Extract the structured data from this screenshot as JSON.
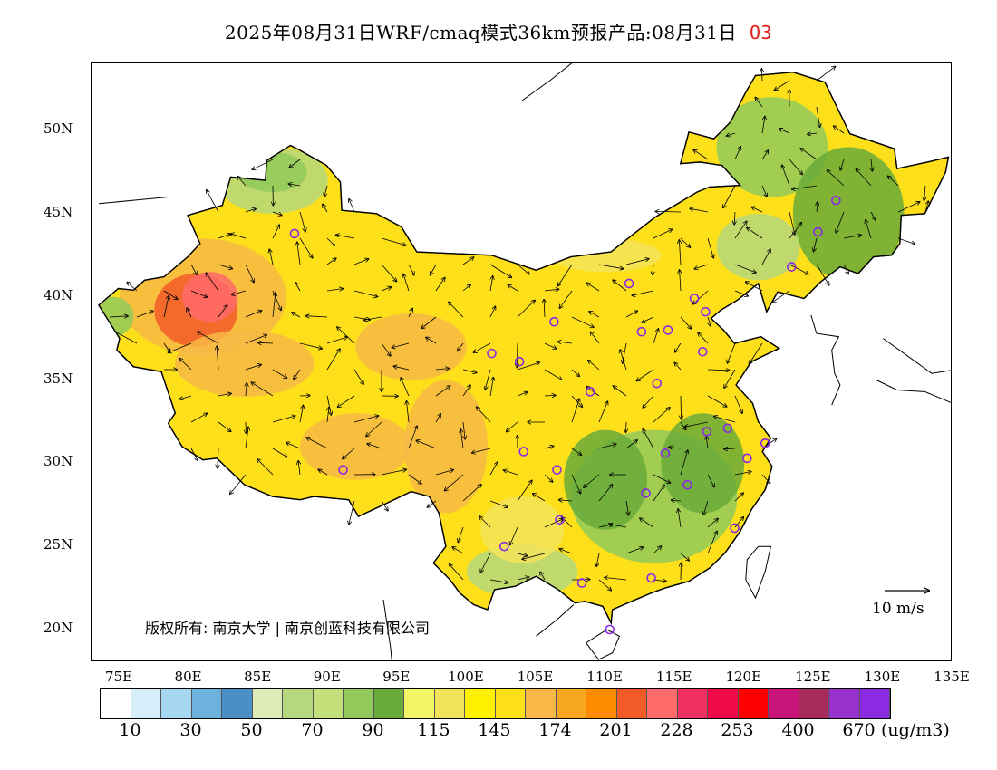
{
  "header": {
    "title": "2025年08月31日WRF/cmaq模式36km预报产品:08月31日",
    "species": "O3",
    "species_color": "#e02020"
  },
  "map": {
    "lon_range": [
      72,
      135
    ],
    "lat_range": [
      18,
      54
    ],
    "lat_ticks": [
      {
        "value": 50,
        "label": "50N"
      },
      {
        "value": 45,
        "label": "45N"
      },
      {
        "value": 40,
        "label": "40N"
      },
      {
        "value": 35,
        "label": "35N"
      },
      {
        "value": 30,
        "label": "30N"
      },
      {
        "value": 25,
        "label": "25N"
      },
      {
        "value": 20,
        "label": "20N"
      }
    ],
    "lon_ticks": [
      {
        "value": 75,
        "label": "75E"
      },
      {
        "value": 80,
        "label": "80E"
      },
      {
        "value": 85,
        "label": "85E"
      },
      {
        "value": 90,
        "label": "90E"
      },
      {
        "value": 95,
        "label": "95E"
      },
      {
        "value": 100,
        "label": "100E"
      },
      {
        "value": 105,
        "label": "105E"
      },
      {
        "value": 110,
        "label": "110E"
      },
      {
        "value": 115,
        "label": "115E"
      },
      {
        "value": 120,
        "label": "120E"
      },
      {
        "value": 125,
        "label": "125E"
      },
      {
        "value": 130,
        "label": "130E"
      },
      {
        "value": 135,
        "label": "135E"
      }
    ],
    "copyright": "版权所有: 南京大学 | 南京创蓝科技有限公司",
    "wind_scale_label": "10 m/s",
    "city_marker_color": "#8a2be2",
    "cities": [
      {
        "lon": 87.6,
        "lat": 43.8
      },
      {
        "lon": 91.1,
        "lat": 29.6
      },
      {
        "lon": 101.8,
        "lat": 36.6
      },
      {
        "lon": 103.8,
        "lat": 36.1
      },
      {
        "lon": 106.3,
        "lat": 38.5
      },
      {
        "lon": 108.9,
        "lat": 34.3
      },
      {
        "lon": 111.7,
        "lat": 40.8
      },
      {
        "lon": 112.6,
        "lat": 37.9
      },
      {
        "lon": 114.5,
        "lat": 38.0
      },
      {
        "lon": 116.4,
        "lat": 39.9
      },
      {
        "lon": 117.2,
        "lat": 39.1
      },
      {
        "lon": 117.0,
        "lat": 36.7
      },
      {
        "lon": 113.7,
        "lat": 34.8
      },
      {
        "lon": 123.4,
        "lat": 41.8
      },
      {
        "lon": 125.3,
        "lat": 43.9
      },
      {
        "lon": 126.6,
        "lat": 45.8
      },
      {
        "lon": 104.1,
        "lat": 30.7
      },
      {
        "lon": 106.5,
        "lat": 29.6
      },
      {
        "lon": 106.7,
        "lat": 26.6
      },
      {
        "lon": 102.7,
        "lat": 25.0
      },
      {
        "lon": 108.3,
        "lat": 22.8
      },
      {
        "lon": 113.3,
        "lat": 23.1
      },
      {
        "lon": 110.3,
        "lat": 20.0
      },
      {
        "lon": 112.9,
        "lat": 28.2
      },
      {
        "lon": 114.3,
        "lat": 30.6
      },
      {
        "lon": 115.9,
        "lat": 28.7
      },
      {
        "lon": 117.3,
        "lat": 31.9
      },
      {
        "lon": 118.8,
        "lat": 32.1
      },
      {
        "lon": 120.2,
        "lat": 30.3
      },
      {
        "lon": 121.5,
        "lat": 31.2
      },
      {
        "lon": 119.3,
        "lat": 26.1
      }
    ]
  },
  "colorbar": {
    "colors": [
      "#ffffff",
      "#d6effa",
      "#a6d8f3",
      "#6cb2dd",
      "#4a90c8",
      "#dcebb8",
      "#b5d77d",
      "#c3e07a",
      "#91c95a",
      "#6aaa3a",
      "#f2f565",
      "#f3e35a",
      "#fff200",
      "#fde01a",
      "#f7b847",
      "#f7a820",
      "#ff8c00",
      "#f25a28",
      "#ff6a6a",
      "#f03060",
      "#ef0a48",
      "#ff0000",
      "#c8147a",
      "#a82c5a",
      "#9932cc",
      "#8a2be2"
    ],
    "labels": [
      {
        "index": 1,
        "text": "10"
      },
      {
        "index": 3,
        "text": "30"
      },
      {
        "index": 5,
        "text": "50"
      },
      {
        "index": 7,
        "text": "70"
      },
      {
        "index": 9,
        "text": "90"
      },
      {
        "index": 11,
        "text": "115"
      },
      {
        "index": 13,
        "text": "145"
      },
      {
        "index": 15,
        "text": "174"
      },
      {
        "index": 17,
        "text": "201"
      },
      {
        "index": 19,
        "text": "228"
      },
      {
        "index": 21,
        "text": "253"
      },
      {
        "index": 23,
        "text": "400"
      },
      {
        "index": 25,
        "text": "670"
      }
    ],
    "unit": "(ug/m3)"
  }
}
